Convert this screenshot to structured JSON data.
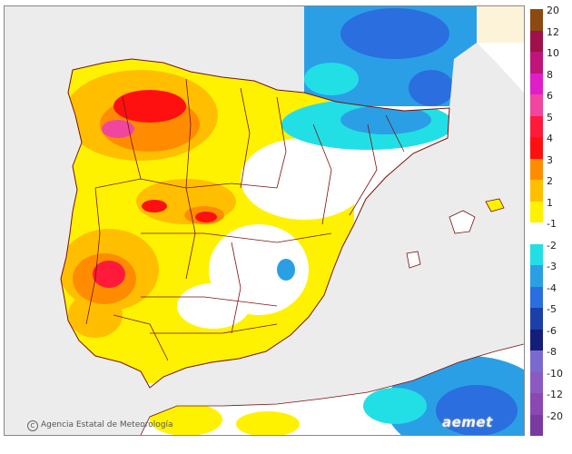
{
  "map": {
    "credit_text": "Agencia Estatal de Meteorología",
    "logo_text": "aemet",
    "colors": {
      "sea": "#ececec",
      "land_base": "#ffffff",
      "border": "#7a1010"
    }
  },
  "legend": {
    "bins": [
      {
        "label": "20",
        "color": "#8b4a10"
      },
      {
        "label": "12",
        "color": "#a0104a"
      },
      {
        "label": "10",
        "color": "#c0147a"
      },
      {
        "label": "8",
        "color": "#e01ec8"
      },
      {
        "label": "6",
        "color": "#f046a0"
      },
      {
        "label": "5",
        "color": "#ff1a3a"
      },
      {
        "label": "4",
        "color": "#ff1010"
      },
      {
        "label": "3",
        "color": "#ff8c00"
      },
      {
        "label": "2",
        "color": "#ffbf00"
      },
      {
        "label": "1",
        "color": "#fff200"
      },
      {
        "label": "-1",
        "color": "#ffffff"
      },
      {
        "label": "-2",
        "color": "#22dfe6"
      },
      {
        "label": "-3",
        "color": "#2a9fe6"
      },
      {
        "label": "-4",
        "color": "#2a6ee0"
      },
      {
        "label": "-5",
        "color": "#1c3fa8"
      },
      {
        "label": "-6",
        "color": "#121e7a"
      },
      {
        "label": "-8",
        "color": "#7a6ad0"
      },
      {
        "label": "-10",
        "color": "#8a5ac0"
      },
      {
        "label": "-12",
        "color": "#8a48b0"
      },
      {
        "label": "-20",
        "color": "#7a3aa0"
      }
    ]
  }
}
